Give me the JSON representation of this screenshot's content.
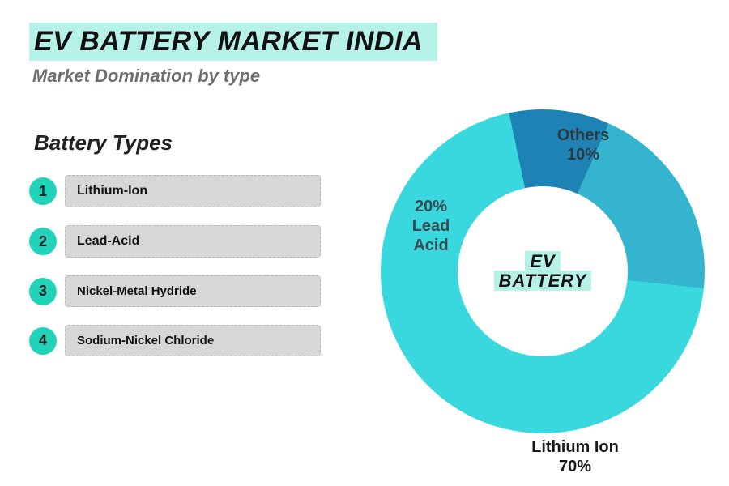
{
  "header": {
    "title": "EV BATTERY MARKET INDIA",
    "title_bg": "#b6f2e8",
    "title_color": "#111111",
    "title_fontsize": 34,
    "subtitle": "Market Domination by type",
    "subtitle_color": "#6b6f73",
    "subtitle_fontsize": 22
  },
  "types": {
    "heading": "Battery Types",
    "heading_fontsize": 26,
    "badge_bg": "#21d3b9",
    "bar_bg": "#d7d7d7",
    "items": [
      {
        "num": "1",
        "label": "Lithium-Ion"
      },
      {
        "num": "2",
        "label": "Lead-Acid"
      },
      {
        "num": "3",
        "label": "Nickel-Metal Hydride"
      },
      {
        "num": "4",
        "label": "Sodium-Nickel Chloride"
      }
    ]
  },
  "chart": {
    "type": "donut",
    "center_label_line1": "EV",
    "center_label_line2": "BATTERY",
    "center_label_bg": "#b6f2e8",
    "center_label_color": "#111111",
    "center_label_fontsize": 22,
    "hole_ratio": 0.525,
    "slices": [
      {
        "name": "Others",
        "value": 10,
        "color": "#1f82b4",
        "label_line1": "Others",
        "label_line2": "10%",
        "label_color": "#2b3a42"
      },
      {
        "name": "Lead Acid",
        "value": 20,
        "color": "#34b4cf",
        "label_line1": "20%",
        "label_line2": "Lead",
        "label_line3": "Acid",
        "label_color": "#3a4a52"
      },
      {
        "name": "Lithium Ion",
        "value": 70,
        "color": "#38d8de",
        "label_line1": "Lithium Ion",
        "label_line2": "70%",
        "label_color": "#1a1a1a"
      }
    ],
    "slice_label_fontsize": 20,
    "start_angle_deg": -12
  },
  "background_color": "#ffffff"
}
